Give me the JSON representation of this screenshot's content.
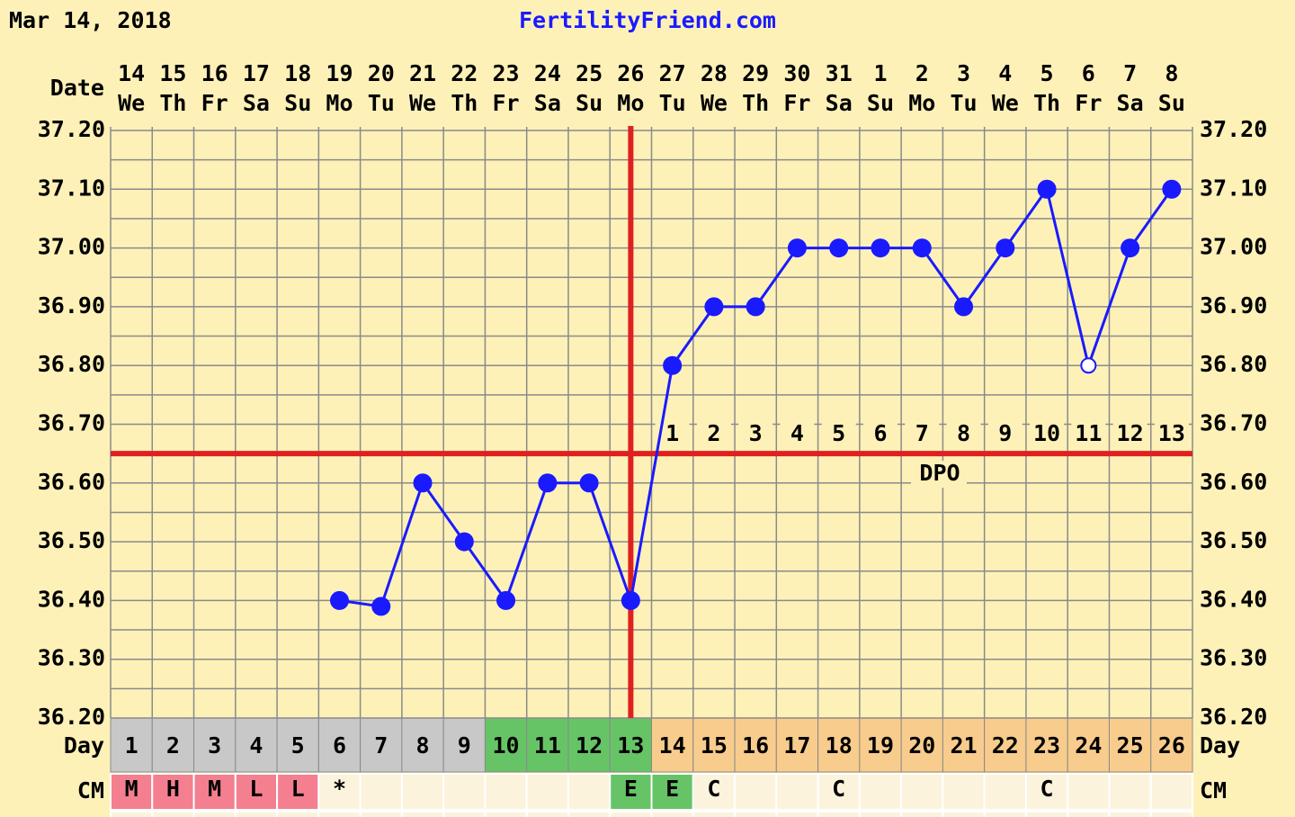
{
  "chart_data": {
    "type": "line",
    "date": "Mar 14, 2018",
    "site": "FertilityFriend.com",
    "date_label": "Date",
    "day_label": "Day",
    "cm_label": "CM",
    "dpo_label": "DPO",
    "dates": [
      14,
      15,
      16,
      17,
      18,
      19,
      20,
      21,
      22,
      23,
      24,
      25,
      26,
      27,
      28,
      29,
      30,
      31,
      1,
      2,
      3,
      4,
      5,
      6,
      7,
      8
    ],
    "weekdays": [
      "We",
      "Th",
      "Fr",
      "Sa",
      "Su",
      "Mo",
      "Tu",
      "We",
      "Th",
      "Fr",
      "Sa",
      "Su",
      "Mo",
      "Tu",
      "We",
      "Th",
      "Fr",
      "Sa",
      "Su",
      "Mo",
      "Tu",
      "We",
      "Th",
      "Fr",
      "Sa",
      "Su"
    ],
    "categories": [
      1,
      2,
      3,
      4,
      5,
      6,
      7,
      8,
      9,
      10,
      11,
      12,
      13,
      14,
      15,
      16,
      17,
      18,
      19,
      20,
      21,
      22,
      23,
      24,
      25,
      26
    ],
    "values": [
      null,
      null,
      null,
      null,
      null,
      36.4,
      36.39,
      36.6,
      36.5,
      36.4,
      36.6,
      36.6,
      36.4,
      36.8,
      36.9,
      36.9,
      37.0,
      37.0,
      37.0,
      37.0,
      36.9,
      37.0,
      37.1,
      36.8,
      37.0,
      37.1
    ],
    "open_points": [
      false,
      false,
      false,
      false,
      false,
      false,
      false,
      false,
      false,
      false,
      false,
      false,
      false,
      false,
      false,
      false,
      false,
      false,
      false,
      false,
      false,
      false,
      false,
      true,
      false,
      false
    ],
    "color": "#1a1aff",
    "coverline": 36.65,
    "ovulation_day": 13,
    "marker_line_color": "#e02020",
    "dpo": [
      null,
      null,
      null,
      null,
      null,
      null,
      null,
      null,
      null,
      null,
      null,
      null,
      null,
      1,
      2,
      3,
      4,
      5,
      6,
      7,
      8,
      9,
      10,
      11,
      12,
      13
    ],
    "day_colors": [
      "#c8c8c8",
      "#c8c8c8",
      "#c8c8c8",
      "#c8c8c8",
      "#c8c8c8",
      "#c8c8c8",
      "#c8c8c8",
      "#c8c8c8",
      "#c8c8c8",
      "#66c466",
      "#66c466",
      "#66c466",
      "#66c466",
      "#f8cc8c",
      "#f8cc8c",
      "#f8cc8c",
      "#f8cc8c",
      "#f8cc8c",
      "#f8cc8c",
      "#f8cc8c",
      "#f8cc8c",
      "#f8cc8c",
      "#f8cc8c",
      "#f8cc8c",
      "#f8cc8c",
      "#f8cc8c"
    ],
    "cm": [
      "M",
      "H",
      "M",
      "L",
      "L",
      "*",
      null,
      null,
      null,
      null,
      null,
      null,
      "E",
      "E",
      "C",
      null,
      null,
      "C",
      null,
      null,
      null,
      null,
      "C",
      null,
      null,
      null
    ],
    "cm_colors": [
      "#f47f8f",
      "#f47f8f",
      "#f47f8f",
      "#f47f8f",
      "#f47f8f",
      "#fcf3dc",
      "#fcf3dc",
      "#fcf3dc",
      "#fcf3dc",
      "#fcf3dc",
      "#fcf3dc",
      "#fcf3dc",
      "#66c466",
      "#66c466",
      "#fcf3dc",
      "#fcf3dc",
      "#fcf3dc",
      "#fcf3dc",
      "#fcf3dc",
      "#fcf3dc",
      "#fcf3dc",
      "#fcf3dc",
      "#fcf3dc",
      "#fcf3dc",
      "#fcf3dc",
      "#fcf3dc"
    ],
    "ylim": [
      36.2,
      37.2
    ],
    "yticks": [
      {
        "value": 36.2,
        "label": "36.20"
      },
      {
        "value": 36.3,
        "label": "36.30"
      },
      {
        "value": 36.4,
        "label": "36.40"
      },
      {
        "value": 36.5,
        "label": "36.50"
      },
      {
        "value": 36.6,
        "label": "36.60"
      },
      {
        "value": 36.7,
        "label": "36.70"
      },
      {
        "value": 36.8,
        "label": "36.80"
      },
      {
        "value": 36.9,
        "label": "36.90"
      },
      {
        "value": 37.0,
        "label": "37.00"
      },
      {
        "value": 37.1,
        "label": "37.10"
      },
      {
        "value": 37.2,
        "label": "37.20"
      }
    ],
    "grid": true,
    "minor_grid": true
  }
}
